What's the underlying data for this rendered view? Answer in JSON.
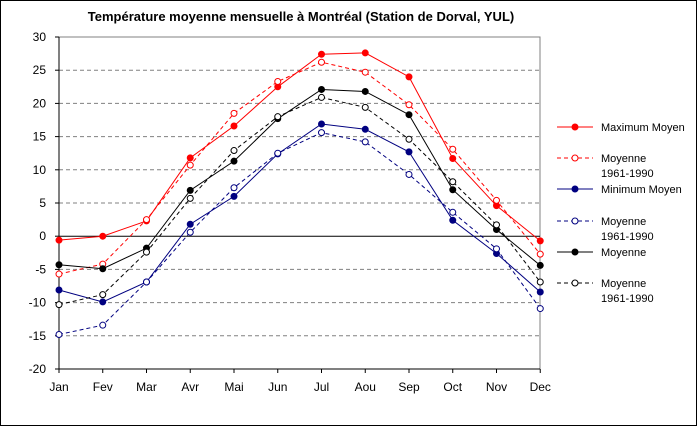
{
  "chart_data": {
    "type": "line",
    "title": "Température moyenne mensuelle à Montréal (Station de Dorval, YUL)",
    "xlabel": "",
    "ylabel": "",
    "categories": [
      "Jan",
      "Fev",
      "Mar",
      "Avr",
      "Mai",
      "Jun",
      "Jul",
      "Aou",
      "Sep",
      "Oct",
      "Nov",
      "Dec"
    ],
    "ylim": [
      -20,
      30
    ],
    "yticks": [
      30,
      25,
      20,
      15,
      10,
      5,
      0,
      -5,
      -10,
      -15,
      -20
    ],
    "grid": "horizontal dashed",
    "legend_position": "right",
    "series": [
      {
        "key": "max",
        "name": "Maximum Moyen",
        "color": "#ff0000",
        "line_style": "solid",
        "marker": "filled",
        "values": [
          -0.6,
          0.0,
          2.3,
          11.8,
          16.6,
          22.5,
          27.4,
          27.6,
          24.0,
          11.7,
          4.6,
          -0.7
        ]
      },
      {
        "key": "max_normal",
        "name": "Moyenne\n1961-1990",
        "color": "#ff0000",
        "line_style": "dashed",
        "marker": "open",
        "values": [
          -5.7,
          -4.2,
          2.5,
          10.7,
          18.5,
          23.3,
          26.2,
          24.7,
          19.8,
          13.1,
          5.4,
          -2.7
        ]
      },
      {
        "key": "min",
        "name": "Minimum Moyen",
        "color": "#000080",
        "line_style": "solid",
        "marker": "filled",
        "values": [
          -8.1,
          -9.9,
          -6.9,
          1.8,
          6.0,
          12.4,
          16.9,
          16.1,
          12.7,
          2.4,
          -2.6,
          -8.4
        ]
      },
      {
        "key": "min_normal",
        "name": "Moyenne\n1961-1990",
        "color": "#000080",
        "line_style": "dashed",
        "marker": "open",
        "values": [
          -14.8,
          -13.4,
          -6.9,
          0.6,
          7.3,
          12.5,
          15.6,
          14.2,
          9.3,
          3.6,
          -1.9,
          -10.9
        ]
      },
      {
        "key": "mean",
        "name": "Moyenne",
        "color": "#000000",
        "line_style": "solid",
        "marker": "filled",
        "values": [
          -4.3,
          -4.9,
          -1.8,
          6.9,
          11.3,
          17.7,
          22.1,
          21.8,
          18.3,
          7.0,
          1.0,
          -4.4
        ]
      },
      {
        "key": "mean_normal",
        "name": "Moyenne\n1961-1990",
        "color": "#000000",
        "line_style": "dashed",
        "marker": "open",
        "values": [
          -10.3,
          -8.8,
          -2.4,
          5.7,
          12.9,
          18.0,
          20.9,
          19.4,
          14.6,
          8.2,
          1.7,
          -6.9
        ]
      }
    ]
  }
}
